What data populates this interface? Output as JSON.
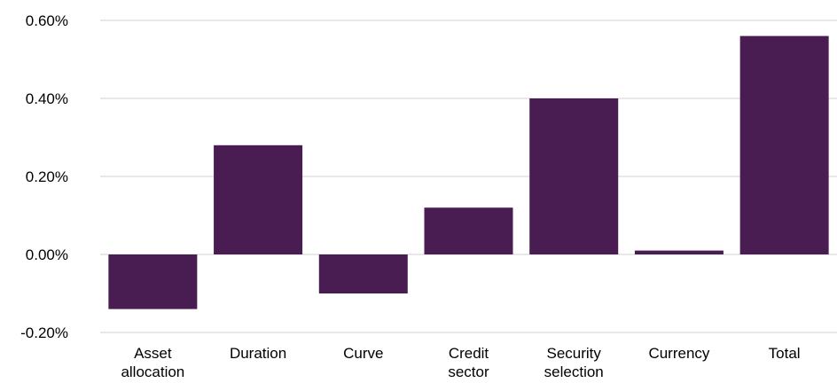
{
  "chart_data": {
    "type": "bar",
    "title": "",
    "xlabel": "",
    "ylabel": "",
    "categories": [
      [
        "Asset",
        "allocation"
      ],
      [
        "Duration"
      ],
      [
        "Curve"
      ],
      [
        "Credit",
        "sector"
      ],
      [
        "Security",
        "selection"
      ],
      [
        "Currency"
      ],
      [
        "Total"
      ]
    ],
    "values": [
      -0.14,
      0.28,
      -0.1,
      0.12,
      0.4,
      0.01,
      0.56
    ],
    "ylim": [
      -0.2,
      0.6
    ],
    "yticks": [
      -0.2,
      0.0,
      0.2,
      0.4,
      0.6
    ],
    "ytick_labels": [
      "-0.20%",
      "0.00%",
      "0.20%",
      "0.40%",
      "0.60%"
    ],
    "grid": true,
    "legend": "none",
    "bar_color": "#4a1d52",
    "grid_color": "#d9d9d9"
  }
}
